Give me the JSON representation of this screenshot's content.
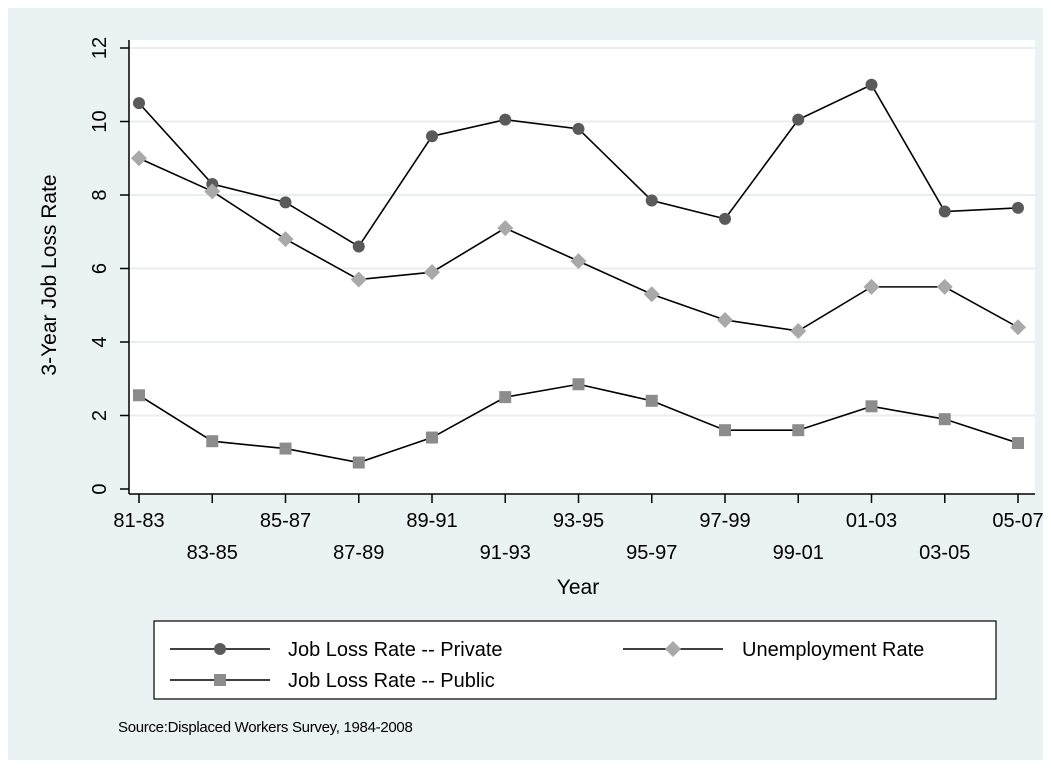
{
  "chart_data": {
    "type": "line",
    "x": [
      "81-83",
      "83-85",
      "85-87",
      "87-89",
      "89-91",
      "91-93",
      "93-95",
      "95-97",
      "97-99",
      "99-01",
      "01-03",
      "03-05",
      "05-07"
    ],
    "ylabel": "3-Year Job Loss Rate",
    "xlabel": "Year",
    "ylim": [
      0,
      12
    ],
    "yticks": [
      0,
      2,
      4,
      6,
      8,
      10,
      12
    ],
    "grid": true,
    "legend_position": "bottom",
    "series": [
      {
        "name": "Job Loss Rate -- Private",
        "marker": "circle",
        "color": "#5a5a5a",
        "values": [
          10.5,
          8.3,
          7.8,
          6.6,
          9.6,
          10.05,
          9.8,
          7.85,
          7.35,
          10.05,
          11.0,
          7.55,
          7.65
        ]
      },
      {
        "name": "Unemployment Rate",
        "marker": "diamond",
        "color": "#a9a9a9",
        "values": [
          9.0,
          8.1,
          6.8,
          5.7,
          5.9,
          7.1,
          6.2,
          5.3,
          4.6,
          4.3,
          5.5,
          5.5,
          4.4
        ]
      },
      {
        "name": "Job Loss Rate -- Public",
        "marker": "square",
        "color": "#8c8c8c",
        "values": [
          2.55,
          1.3,
          1.1,
          0.72,
          1.4,
          2.5,
          2.85,
          2.4,
          1.6,
          1.6,
          2.25,
          1.9,
          1.25
        ]
      }
    ],
    "note": "Source:Displaced Workers Survey, 1984-2008"
  }
}
